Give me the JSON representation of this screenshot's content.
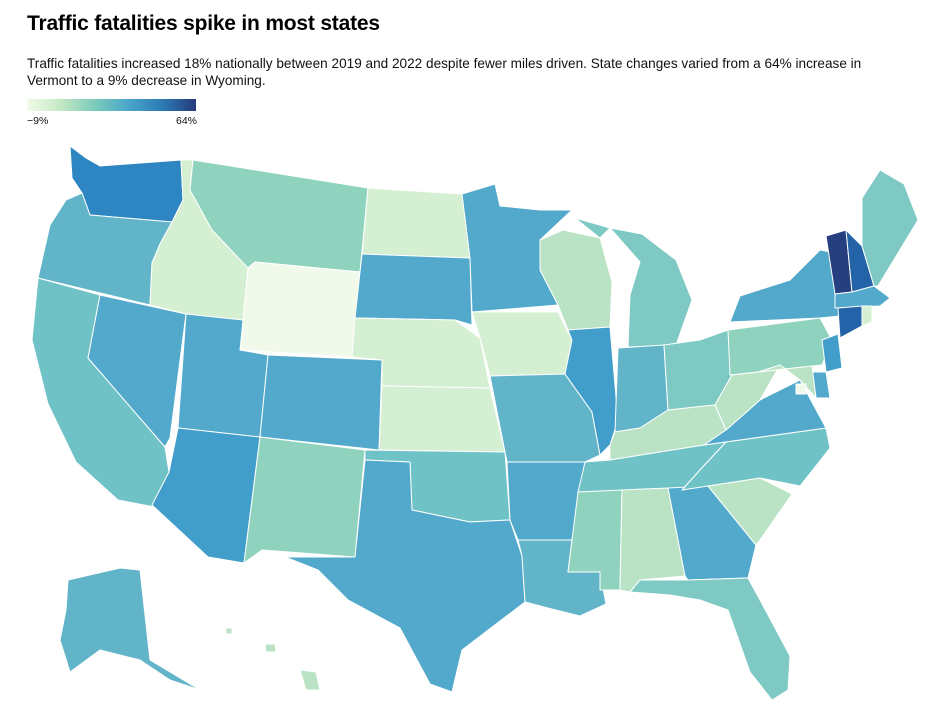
{
  "title": "Traffic fatalities spike in most states",
  "subtitle": "Traffic fatalities increased 18% nationally between 2019 and 2022 despite fewer miles driven. State changes varied from a 64% increase in Vermont to a 9% decrease in Wyoming.",
  "legend": {
    "min_label": "−9%",
    "max_label": "64%"
  },
  "colors": {
    "c0": "#f1faea",
    "c1": "#d4efd2",
    "c2": "#b9e3c4",
    "c3": "#8fd3bf",
    "c4": "#7ec9c3",
    "c5": "#6fc2c6",
    "c6": "#62b5c9",
    "c7": "#52a9cc",
    "c8": "#419dca",
    "c9": "#2d86c1",
    "c10": "#2563a9",
    "c11": "#253f7f"
  },
  "states": [
    {
      "id": "WA",
      "level": "c9"
    },
    {
      "id": "OR",
      "level": "c6"
    },
    {
      "id": "CA",
      "level": "c5"
    },
    {
      "id": "NV",
      "level": "c7"
    },
    {
      "id": "ID",
      "level": "c1"
    },
    {
      "id": "MT",
      "level": "c3"
    },
    {
      "id": "WY",
      "level": "c0"
    },
    {
      "id": "UT",
      "level": "c7"
    },
    {
      "id": "AZ",
      "level": "c8"
    },
    {
      "id": "CO",
      "level": "c7"
    },
    {
      "id": "NM",
      "level": "c3"
    },
    {
      "id": "ND",
      "level": "c1"
    },
    {
      "id": "SD",
      "level": "c7"
    },
    {
      "id": "NE",
      "level": "c1"
    },
    {
      "id": "KS",
      "level": "c1"
    },
    {
      "id": "OK",
      "level": "c5"
    },
    {
      "id": "TX",
      "level": "c7"
    },
    {
      "id": "MN",
      "level": "c7"
    },
    {
      "id": "IA",
      "level": "c1"
    },
    {
      "id": "MO",
      "level": "c6"
    },
    {
      "id": "AR",
      "level": "c7"
    },
    {
      "id": "LA",
      "level": "c6"
    },
    {
      "id": "WI",
      "level": "c2"
    },
    {
      "id": "IL",
      "level": "c8"
    },
    {
      "id": "MI",
      "level": "c4"
    },
    {
      "id": "IN",
      "level": "c6"
    },
    {
      "id": "OH",
      "level": "c4"
    },
    {
      "id": "KY",
      "level": "c2"
    },
    {
      "id": "TN",
      "level": "c5"
    },
    {
      "id": "MS",
      "level": "c3"
    },
    {
      "id": "AL",
      "level": "c2"
    },
    {
      "id": "GA",
      "level": "c7"
    },
    {
      "id": "FL",
      "level": "c4"
    },
    {
      "id": "SC",
      "level": "c2"
    },
    {
      "id": "NC",
      "level": "c5"
    },
    {
      "id": "VA",
      "level": "c7"
    },
    {
      "id": "WV",
      "level": "c2"
    },
    {
      "id": "PA",
      "level": "c3"
    },
    {
      "id": "NY",
      "level": "c7"
    },
    {
      "id": "NJ",
      "level": "c8"
    },
    {
      "id": "DE",
      "level": "c7"
    },
    {
      "id": "MD",
      "level": "c2"
    },
    {
      "id": "DC",
      "level": "c0"
    },
    {
      "id": "VT",
      "level": "c11"
    },
    {
      "id": "NH",
      "level": "c10"
    },
    {
      "id": "ME",
      "level": "c4"
    },
    {
      "id": "MA",
      "level": "c7"
    },
    {
      "id": "CT",
      "level": "c10"
    },
    {
      "id": "RI",
      "level": "c1"
    },
    {
      "id": "AK",
      "level": "c6"
    },
    {
      "id": "HI",
      "level": "c2"
    }
  ]
}
